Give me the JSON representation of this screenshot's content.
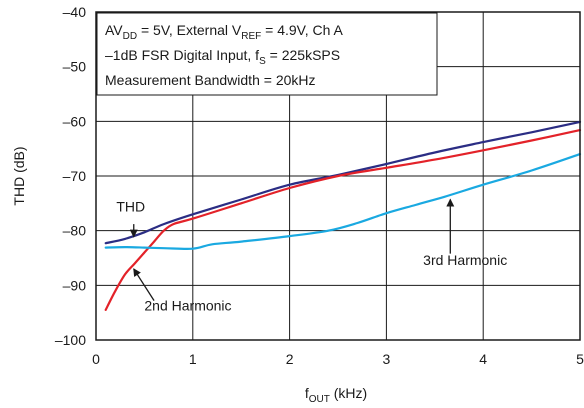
{
  "chart_data": {
    "type": "line",
    "xlabel_main": "f",
    "xlabel_sub": "OUT",
    "xlabel_unit": " (kHz)",
    "ylabel": "THD (dB)",
    "xlim": [
      0,
      5
    ],
    "ylim": [
      -100,
      -40
    ],
    "x_ticks": [
      "0",
      "1",
      "2",
      "3",
      "4",
      "5"
    ],
    "y_ticks": [
      "–40",
      "–50",
      "–60",
      "–70",
      "–80",
      "–90",
      "–100"
    ],
    "grid": true,
    "conditions": [
      {
        "parts": [
          [
            "AV",
            ""
          ],
          [
            "DD",
            "sub"
          ],
          [
            " = 5V, External V",
            ""
          ],
          [
            "REF",
            "sub"
          ],
          [
            " = 4.9V, Ch A",
            ""
          ]
        ]
      },
      {
        "parts": [
          [
            "–1dB FSR Digital Input, f",
            ""
          ],
          [
            "S",
            "sub"
          ],
          [
            " = 225kSPS",
            ""
          ]
        ]
      },
      {
        "parts": [
          [
            "Measurement Bandwidth = 20kHz",
            ""
          ]
        ]
      }
    ],
    "series": [
      {
        "name": "THD",
        "color": "#2b2d84",
        "x": [
          0.1,
          0.3,
          0.5,
          0.7,
          1.0,
          1.5,
          2.0,
          2.5,
          3.0,
          3.5,
          4.0,
          4.5,
          5.0
        ],
        "y": [
          -82.3,
          -81.5,
          -80.3,
          -78.8,
          -77.0,
          -74.3,
          -71.6,
          -69.8,
          -67.8,
          -65.7,
          -63.8,
          -62.0,
          -60.1
        ]
      },
      {
        "name": "2nd Harmonic",
        "color": "#e32229",
        "x": [
          0.1,
          0.2,
          0.3,
          0.4,
          0.5,
          0.6,
          0.7,
          0.8,
          1.0,
          1.5,
          2.0,
          2.5,
          3.0,
          3.5,
          4.0,
          4.5,
          5.0
        ],
        "y": [
          -94.5,
          -91.0,
          -88.0,
          -86.0,
          -84.0,
          -82.0,
          -80.0,
          -78.8,
          -77.8,
          -75.0,
          -72.2,
          -70.0,
          -68.5,
          -67.0,
          -65.3,
          -63.5,
          -61.6
        ]
      },
      {
        "name": "3rd Harmonic",
        "color": "#1aa9e1",
        "x": [
          0.1,
          0.3,
          0.5,
          0.7,
          1.0,
          1.2,
          1.5,
          2.0,
          2.4,
          2.7,
          3.0,
          3.3,
          3.6,
          4.0,
          4.5,
          5.0
        ],
        "y": [
          -83.1,
          -83.0,
          -83.1,
          -83.2,
          -83.3,
          -82.5,
          -82.0,
          -81.0,
          -80.0,
          -78.6,
          -76.8,
          -75.3,
          -73.8,
          -71.6,
          -69.0,
          -66.0
        ]
      }
    ],
    "annotations": [
      {
        "text": "THD",
        "tx": 0.21,
        "ty": -76.5,
        "ax0": 0.39,
        "ay0": -78.8,
        "ax1": 0.39,
        "ay1": -81.1
      },
      {
        "text": "2nd Harmonic",
        "tx": 0.5,
        "ty": -94.6,
        "ax0": 0.6,
        "ay0": -92.8,
        "ax1": 0.39,
        "ay1": -87.0
      },
      {
        "text": "3rd Harmonic",
        "tx": 3.38,
        "ty": -86.3,
        "ax0": 3.66,
        "ay0": -84.2,
        "ax1": 3.66,
        "ay1": -74.3
      }
    ]
  }
}
